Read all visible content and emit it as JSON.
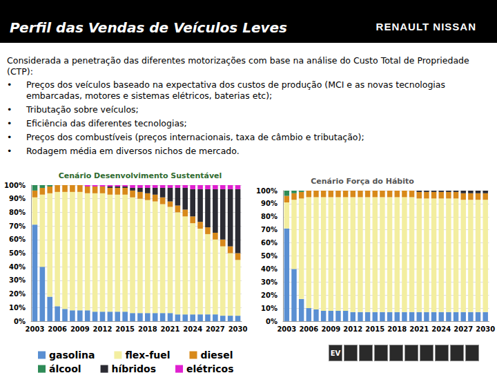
{
  "slide": {
    "title": "Perfil das Vendas de Veículos Leves",
    "logo": "RENAULT NISSAN",
    "intro": "Considerada a penetração das diferentes motorizações com base na análise do Custo Total de Propriedade (CTP):",
    "bullets": [
      "Preços dos veículos baseado na expectativa dos custos de produção (MCI e as novas tecnologias embarcadas, motores e sistemas elétricos, baterias etc);",
      "Tributação sobre veículos;",
      "Eficiência das diferentes tecnologias;",
      "Preços dos combustíveis (preços internacionais, taxa de câmbio e tributação);",
      "Rodagem média em diversos nichos de mercado."
    ],
    "icon_label": "EV"
  },
  "chart_data": [
    {
      "type": "bar",
      "title": "Cenário Desenvolvimento Sustentável",
      "stacked": true,
      "grid": true,
      "categories": [
        "2003",
        null,
        null,
        "2006",
        null,
        null,
        "2009",
        null,
        null,
        "2012",
        null,
        null,
        "2015",
        null,
        null,
        "2018",
        null,
        null,
        "2021",
        null,
        null,
        "2024",
        null,
        null,
        "2027",
        null,
        null,
        "2030"
      ],
      "ylim": [
        0,
        100
      ],
      "yticks": [
        {
          "value": 0,
          "label": "0%"
        },
        {
          "value": 10,
          "label": "10%"
        },
        {
          "value": 20,
          "label": "20%"
        },
        {
          "value": 30,
          "label": "30%"
        },
        {
          "value": 40,
          "label": "40%"
        },
        {
          "value": 50,
          "label": "50%"
        },
        {
          "value": 60,
          "label": "60%"
        },
        {
          "value": 70,
          "label": "70%"
        },
        {
          "value": 80,
          "label": "80%"
        },
        {
          "value": 90,
          "label": "90%"
        },
        {
          "value": 100,
          "label": "100%"
        }
      ],
      "series": [
        {
          "name": "gasolina",
          "color": "#5a8fd2",
          "values": [
            71,
            40,
            18,
            11,
            9,
            8,
            8,
            8,
            7,
            7,
            7,
            7,
            7,
            6,
            6,
            6,
            6,
            6,
            6,
            5,
            5,
            5,
            5,
            5,
            5,
            4,
            4,
            4
          ]
        },
        {
          "name": "flex-fuel",
          "color": "#f3eea0",
          "values": [
            20,
            53,
            76,
            84,
            86,
            87,
            87,
            86,
            87,
            87,
            86,
            86,
            86,
            85,
            84,
            83,
            82,
            80,
            78,
            75,
            72,
            67,
            63,
            59,
            55,
            51,
            46,
            41
          ]
        },
        {
          "name": "diesel",
          "color": "#d8891a",
          "values": [
            5,
            5,
            5,
            5,
            5,
            5,
            5,
            5,
            5,
            5,
            5,
            5,
            5,
            5,
            5,
            5,
            5,
            5,
            4,
            5,
            5,
            5,
            5,
            5,
            5,
            5,
            5,
            5
          ]
        },
        {
          "name": "álcool",
          "color": "#2e8b57",
          "values": [
            4,
            2,
            1,
            0,
            0,
            0,
            0,
            0,
            0,
            0,
            0,
            0,
            0,
            0,
            0,
            0,
            0,
            0,
            0,
            0,
            0,
            0,
            0,
            0,
            0,
            0,
            0,
            0
          ]
        },
        {
          "name": "híbridos",
          "color": "#2b2b33",
          "values": [
            0,
            0,
            0,
            0,
            0,
            0,
            0,
            0,
            0,
            0,
            1,
            1,
            1,
            2,
            3,
            4,
            5,
            7,
            10,
            13,
            16,
            20,
            24,
            28,
            32,
            37,
            42,
            47
          ]
        },
        {
          "name": "elétricos",
          "color": "#e020d0",
          "values": [
            0,
            0,
            0,
            0,
            0,
            0,
            0,
            1,
            1,
            1,
            1,
            1,
            1,
            2,
            2,
            2,
            2,
            2,
            2,
            2,
            2,
            3,
            3,
            3,
            3,
            3,
            3,
            3
          ]
        }
      ]
    },
    {
      "type": "bar",
      "title": "Cenário Força do Hábito",
      "stacked": true,
      "grid": true,
      "categories": [
        "2003",
        null,
        null,
        "2006",
        null,
        null,
        "2009",
        null,
        null,
        "2012",
        null,
        null,
        "2015",
        null,
        null,
        "2018",
        null,
        null,
        "2021",
        null,
        null,
        "2024",
        null,
        null,
        "2027",
        null,
        null,
        "2030"
      ],
      "ylim": [
        0,
        100
      ],
      "yticks": [
        {
          "value": 0,
          "label": "0%"
        },
        {
          "value": 10,
          "label": "10%"
        },
        {
          "value": 20,
          "label": "20%"
        },
        {
          "value": 30,
          "label": "30%"
        },
        {
          "value": 40,
          "label": "40%"
        },
        {
          "value": 50,
          "label": "50%"
        },
        {
          "value": 60,
          "label": "60%"
        },
        {
          "value": 70,
          "label": "70%"
        },
        {
          "value": 80,
          "label": "80%"
        },
        {
          "value": 90,
          "label": "90%"
        },
        {
          "value": 100,
          "label": "100%"
        }
      ],
      "series": [
        {
          "name": "gasolina",
          "color": "#5a8fd2",
          "values": [
            71,
            40,
            17,
            10,
            9,
            8,
            8,
            8,
            8,
            7,
            7,
            7,
            7,
            7,
            7,
            7,
            7,
            7,
            7,
            7,
            7,
            7,
            7,
            7,
            7,
            7,
            7,
            7
          ]
        },
        {
          "name": "flex-fuel",
          "color": "#f3eea0",
          "values": [
            20,
            53,
            77,
            85,
            86,
            87,
            87,
            87,
            87,
            88,
            88,
            88,
            88,
            88,
            88,
            88,
            88,
            88,
            87,
            87,
            87,
            87,
            87,
            87,
            86,
            86,
            86,
            86
          ]
        },
        {
          "name": "diesel",
          "color": "#d8891a",
          "values": [
            5,
            5,
            5,
            5,
            5,
            5,
            5,
            5,
            5,
            5,
            5,
            5,
            5,
            5,
            5,
            5,
            5,
            5,
            5,
            5,
            5,
            5,
            5,
            5,
            5,
            5,
            5,
            5
          ]
        },
        {
          "name": "álcool",
          "color": "#2e8b57",
          "values": [
            4,
            2,
            1,
            0,
            0,
            0,
            0,
            0,
            0,
            0,
            0,
            0,
            0,
            0,
            0,
            0,
            0,
            0,
            0,
            0,
            0,
            0,
            0,
            0,
            0,
            0,
            0,
            0
          ]
        },
        {
          "name": "híbridos",
          "color": "#2b2b33",
          "values": [
            0,
            0,
            0,
            0,
            0,
            0,
            0,
            0,
            0,
            0,
            0,
            0,
            0,
            0,
            0,
            0,
            0,
            0,
            1,
            1,
            1,
            1,
            1,
            1,
            2,
            2,
            2,
            2
          ]
        },
        {
          "name": "elétricos",
          "color": "#e020d0",
          "values": [
            0,
            0,
            0,
            0,
            0,
            0,
            0,
            0,
            0,
            0,
            0,
            0,
            0,
            0,
            0,
            0,
            0,
            0,
            0,
            0,
            0,
            0,
            0,
            0,
            0,
            0,
            0,
            0
          ]
        }
      ]
    }
  ]
}
